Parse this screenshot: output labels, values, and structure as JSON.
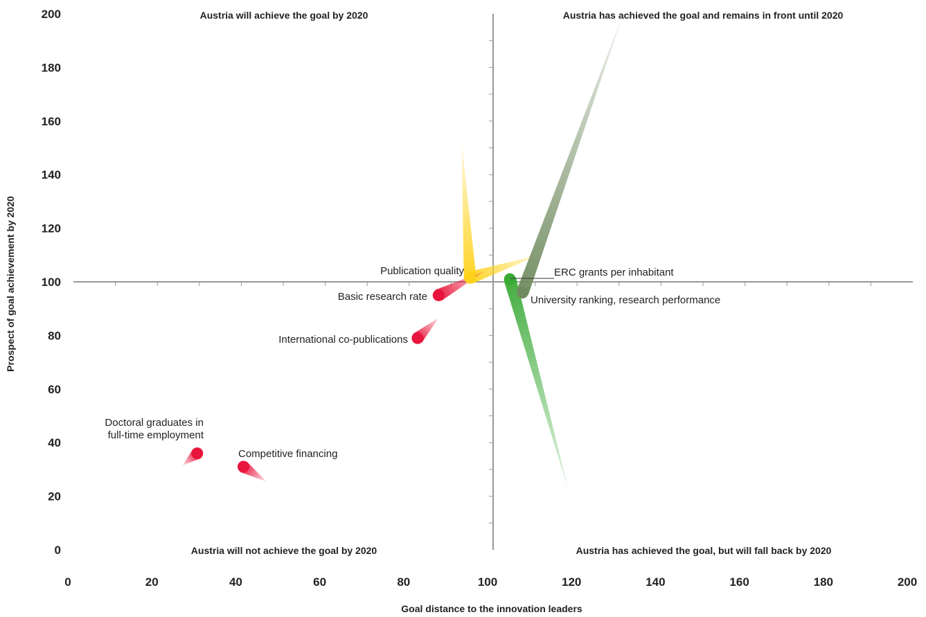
{
  "chart_data": {
    "type": "scatter",
    "title": "",
    "xlabel": "Goal distance to the innovation leaders",
    "ylabel": "Prospect of goal achievement by 2020",
    "xlim": [
      0,
      200
    ],
    "ylim": [
      0,
      200
    ],
    "x_ticks": [
      0,
      20,
      40,
      60,
      80,
      100,
      120,
      140,
      160,
      180,
      200
    ],
    "y_ticks": [
      0,
      20,
      40,
      60,
      80,
      100,
      120,
      140,
      160,
      180,
      200
    ],
    "grid": false,
    "legend": "none",
    "quadrant_labels": {
      "top_left": "Austria will achieve the goal by 2020",
      "top_right": "Austria has achieved the goal and remains in front until 2020",
      "bottom_left": "Austria will not achieve the goal by 2020",
      "bottom_right": "Austria has achieved the goal, but will fall back by 2020"
    },
    "points": [
      {
        "label": "Publication quality",
        "x": 94.5,
        "y": 101.5,
        "color": "#ffd21a",
        "trails": [
          [
            92.5,
            152
          ],
          [
            111,
            110
          ]
        ]
      },
      {
        "label": "Basic research rate",
        "x": 87,
        "y": 95,
        "color": "#e8163c",
        "trails": [
          [
            98,
            104
          ]
        ]
      },
      {
        "label": "International co-publications",
        "x": 82,
        "y": 79,
        "color": "#e8163c",
        "trails": [
          [
            87,
            86.5
          ]
        ]
      },
      {
        "label": "Doctoral graduates in full-time employment",
        "label_lines": [
          "Doctoral graduates in",
          "full-time employment"
        ],
        "x": 29.5,
        "y": 36,
        "color": "#e8163c",
        "trails": [
          [
            26,
            31.5
          ]
        ]
      },
      {
        "label": "Competitive financing",
        "x": 40.5,
        "y": 31,
        "color": "#e8163c",
        "trails": [
          [
            46,
            25.5
          ]
        ]
      },
      {
        "label": "ERC grants per inhabitant",
        "x": 104,
        "y": 101,
        "color": "#3aaa35",
        "trails": [
          [
            118,
            22
          ]
        ]
      },
      {
        "label": "University ranking, research performance",
        "x": 107,
        "y": 96,
        "color": "#6f8a5e",
        "trails": [
          [
            131,
            200
          ]
        ]
      }
    ]
  }
}
